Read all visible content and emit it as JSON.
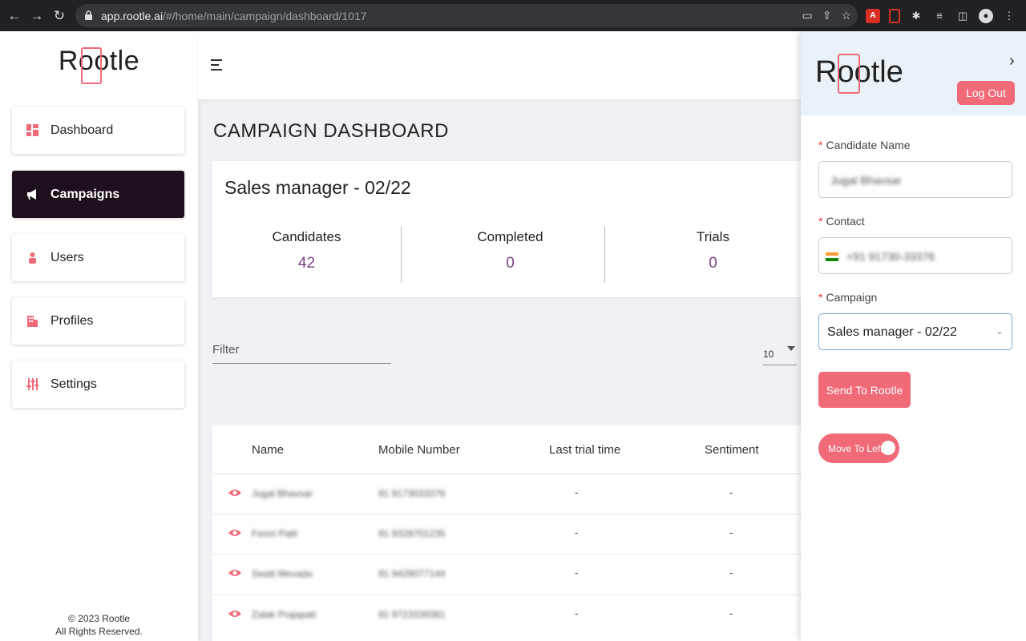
{
  "browser": {
    "url_host": "app.rootle.ai",
    "url_path": "/#/home/main/campaign/dashboard/1017"
  },
  "colors": {
    "accent": "#f06a78",
    "active_nav": "#1e0f1c",
    "stat_value": "#7b3f85"
  },
  "sidebar": {
    "logo": "Rootle",
    "items": [
      {
        "label": "Dashboard",
        "icon": "dashboard-icon",
        "active": false
      },
      {
        "label": "Campaigns",
        "icon": "megaphone-icon",
        "active": true
      },
      {
        "label": "Users",
        "icon": "user-icon",
        "active": false
      },
      {
        "label": "Profiles",
        "icon": "building-icon",
        "active": false
      },
      {
        "label": "Settings",
        "icon": "sliders-icon",
        "active": false
      }
    ],
    "footer_line1": "© 2023 Rootle",
    "footer_line2": "All Rights Reserved."
  },
  "main": {
    "title": "CAMPAIGN DASHBOARD",
    "campaign_name": "Sales manager - 02/22",
    "stats": [
      {
        "label": "Candidates",
        "value": "42"
      },
      {
        "label": "Completed",
        "value": "0"
      },
      {
        "label": "Trials",
        "value": "0"
      }
    ],
    "filter_label": "Filter",
    "page_size": "10",
    "table": {
      "columns": [
        "Name",
        "Mobile Number",
        "Last trial time",
        "Sentiment"
      ],
      "rows": [
        {
          "name": "Jugal Bhavsar",
          "mobile": "91 9173033376",
          "last_trial": "-",
          "sentiment": "-"
        },
        {
          "name": "Fenni Patil",
          "mobile": "91 9328701235",
          "last_trial": "-",
          "sentiment": "-"
        },
        {
          "name": "Swati Mevada",
          "mobile": "91 9428077144",
          "last_trial": "-",
          "sentiment": "-"
        },
        {
          "name": "Zalak Prajapati",
          "mobile": "91 9723339381",
          "last_trial": "-",
          "sentiment": "-"
        }
      ]
    }
  },
  "panel": {
    "logo": "Rootle",
    "logout_label": "Log Out",
    "candidate_label": "Candidate Name",
    "candidate_value": "Jugal Bhavsar",
    "contact_label": "Contact",
    "contact_value": "+91 91730-33376",
    "campaign_label": "Campaign",
    "campaign_value": "Sales manager - 02/22",
    "send_label": "Send To Rootle",
    "toggle_label": "Move To Left",
    "required_mark": "*"
  }
}
